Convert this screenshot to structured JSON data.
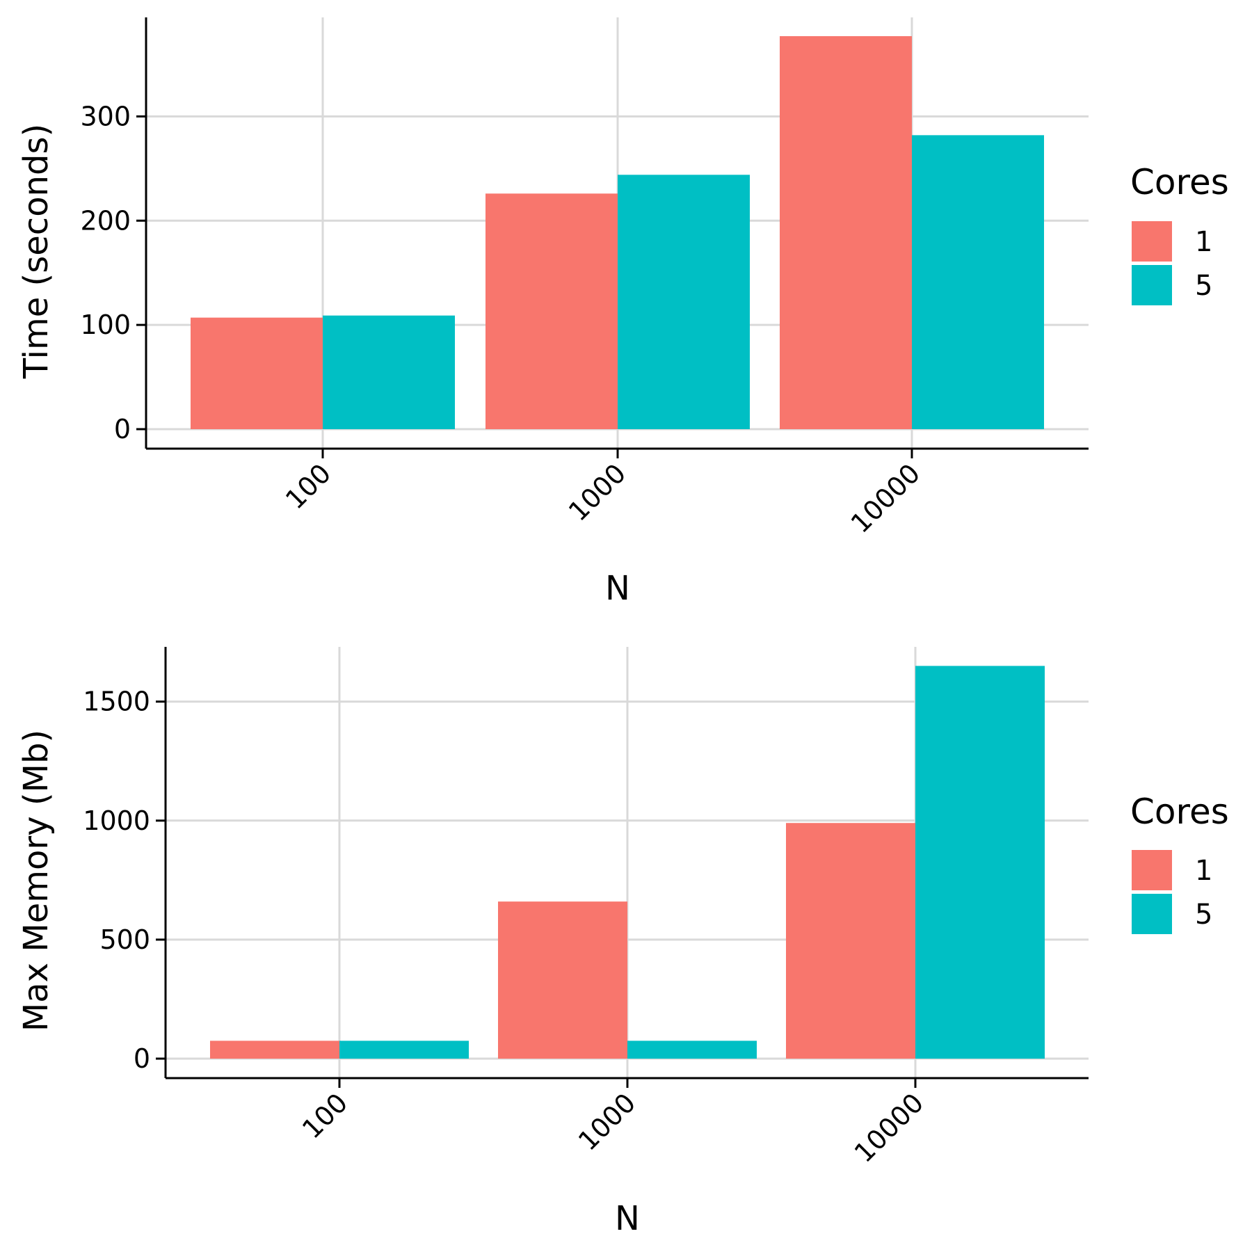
{
  "chart_data": [
    {
      "type": "bar",
      "xlabel": "N",
      "ylabel": "Time (seconds)",
      "categories": [
        "100",
        "1000",
        "10000"
      ],
      "series": [
        {
          "name": "1",
          "values": [
            107,
            226,
            377
          ]
        },
        {
          "name": "5",
          "values": [
            109,
            244,
            282
          ]
        }
      ],
      "ylim": [
        0,
        395
      ],
      "yticks": [
        0,
        100,
        200,
        300
      ],
      "legend": {
        "title": "Cores",
        "placement": "right"
      },
      "grid": true
    },
    {
      "type": "bar",
      "xlabel": "N",
      "ylabel": "Max Memory (Mb)",
      "categories": [
        "100",
        "1000",
        "10000"
      ],
      "series": [
        {
          "name": "1",
          "values": [
            75,
            660,
            990
          ]
        },
        {
          "name": "5",
          "values": [
            75,
            75,
            1650
          ]
        }
      ],
      "ylim": [
        0,
        1730
      ],
      "yticks": [
        0,
        500,
        1000,
        1500
      ],
      "legend": {
        "title": "Cores",
        "placement": "right"
      },
      "grid": true
    }
  ],
  "colors": {
    "series_1": "#F8766D",
    "series_5": "#00BFC4",
    "grid": "#D9D9D9",
    "axis": "#000000"
  }
}
